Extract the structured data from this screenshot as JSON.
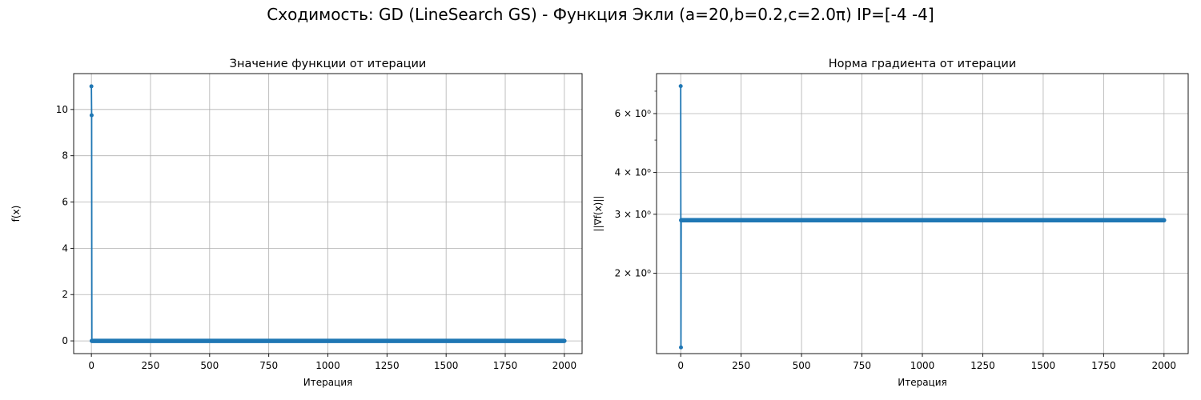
{
  "figure": {
    "suptitle": "Сходимость: GD (LineSearch GS) - Функция Экли (a=20,b=0.2,c=2.0π) IP=[-4 -4]"
  },
  "chart_data": [
    {
      "type": "line",
      "title": "Значение функции от итерации",
      "xlabel": "Итерация",
      "ylabel": "f(x)",
      "xlim": [
        -75,
        2075
      ],
      "ylim": [
        -0.55,
        11.55
      ],
      "x_ticks": [
        0,
        250,
        500,
        750,
        1000,
        1250,
        1500,
        1750,
        2000
      ],
      "x_tick_labels": [
        "0",
        "250",
        "500",
        "750",
        "1000",
        "1250",
        "1500",
        "1750",
        "2000"
      ],
      "y_ticks": [
        0,
        2,
        4,
        6,
        8,
        10
      ],
      "y_tick_labels": [
        "0",
        "2",
        "4",
        "6",
        "8",
        "10"
      ],
      "y_scale": "linear",
      "grid": true,
      "color": "#1f77b4",
      "series": [
        {
          "points": [
            [
              0,
              11.0
            ],
            [
              1,
              9.75
            ],
            [
              2,
              0.0
            ]
          ],
          "plateau": {
            "x_start": 2,
            "x_end": 2000,
            "y": 0.0
          }
        }
      ]
    },
    {
      "type": "line",
      "title": "Норма градиента от итерации",
      "xlabel": "Итерация",
      "ylabel": "||∇f(x)||",
      "xlim": [
        -100,
        2100
      ],
      "ylim": [
        1.15,
        7.9
      ],
      "x_ticks": [
        0,
        250,
        500,
        750,
        1000,
        1250,
        1500,
        1750,
        2000
      ],
      "x_tick_labels": [
        "0",
        "250",
        "500",
        "750",
        "1000",
        "1250",
        "1500",
        "1750",
        "2000"
      ],
      "y_ticks": [
        2,
        3,
        4,
        6
      ],
      "y_tick_labels": [
        "2 × 10⁰",
        "3 × 10⁰",
        "4 × 10⁰",
        "6 × 10⁰"
      ],
      "y_minor_ticks": [
        5,
        7
      ],
      "y_scale": "log",
      "grid": true,
      "color": "#1f77b4",
      "series": [
        {
          "points": [
            [
              0,
              7.25
            ],
            [
              1,
              1.2
            ],
            [
              2,
              2.88
            ]
          ],
          "plateau": {
            "x_start": 2,
            "x_end": 2000,
            "y": 2.88
          }
        }
      ]
    }
  ]
}
